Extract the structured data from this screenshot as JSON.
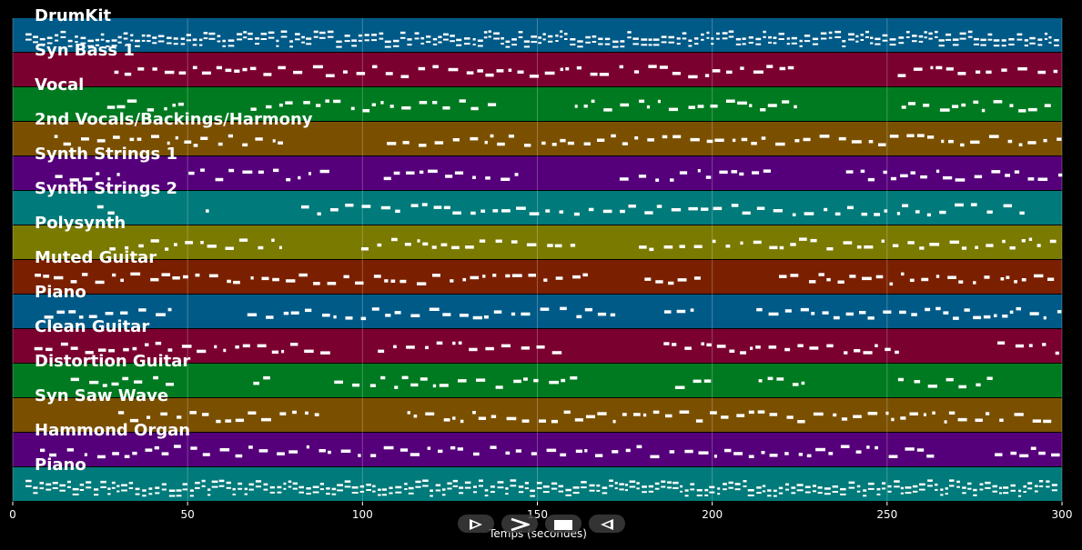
{
  "chart_data": {
    "type": "piano-roll",
    "xlabel": "Temps (secondes)",
    "xlim": [
      0,
      300
    ],
    "xticks": [
      0,
      50,
      100,
      150,
      200,
      250,
      300
    ],
    "grid": true,
    "tracks": [
      {
        "name": "DrumKit",
        "color": "#005a87"
      },
      {
        "name": "Syn Bass 1",
        "color": "#7a0030"
      },
      {
        "name": "Vocal",
        "color": "#007a20"
      },
      {
        "name": "2nd Vocals/Backings/Harmony",
        "color": "#7a5000"
      },
      {
        "name": "Synth Strings 1",
        "color": "#55007a"
      },
      {
        "name": "Synth Strings 2",
        "color": "#007a7a"
      },
      {
        "name": "Polysynth",
        "color": "#7a7a00"
      },
      {
        "name": "Muted Guitar",
        "color": "#7a2000"
      },
      {
        "name": "Piano",
        "color": "#005a87"
      },
      {
        "name": "Clean Guitar",
        "color": "#7a0030"
      },
      {
        "name": "Distortion Guitar",
        "color": "#007a20"
      },
      {
        "name": "Syn Saw Wave",
        "color": "#7a5000"
      },
      {
        "name": "Hammond Organ",
        "color": "#55007a"
      },
      {
        "name": "Piano",
        "color": "#007a7a"
      }
    ]
  },
  "controls": [
    {
      "name": "play-button",
      "icon": "play-icon"
    },
    {
      "name": "next-button",
      "icon": "chevron-right-icon"
    },
    {
      "name": "stop-button",
      "icon": "stop-icon"
    },
    {
      "name": "previous-button",
      "icon": "rewind-icon"
    }
  ]
}
